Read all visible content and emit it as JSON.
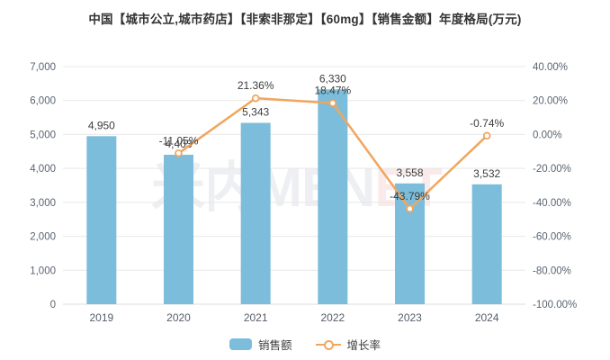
{
  "title": "中国【城市公立,城市药店】【非索非那定】【60mg】【销售金额】年度格局(万元)",
  "watermark": {
    "left": "米内MEN",
    "right": "ET"
  },
  "colors": {
    "bar": "#7CBDDB",
    "line": "#F0A65E",
    "grid": "#E8E8E8",
    "axis_line": "#DCDCDC",
    "tick_text": "#5B6470",
    "label_text": "#3D3D3D",
    "marker_fill": "#FFFFFF"
  },
  "legend": {
    "items": [
      {
        "label": "销售额",
        "type": "bar"
      },
      {
        "label": "增长率",
        "type": "line"
      }
    ]
  },
  "chart_data": {
    "type": "bar",
    "subtype": "bar+line dual-axis",
    "title": "中国【城市公立,城市药店】【非索非那定】【60mg】【销售金额】年度格局(万元)",
    "categories": [
      "2019",
      "2020",
      "2021",
      "2022",
      "2023",
      "2024"
    ],
    "series": [
      {
        "name": "销售额",
        "type": "bar",
        "axis": "left",
        "values": [
          4950,
          4403,
          5343,
          6330,
          3558,
          3532
        ],
        "labels": [
          "4,950",
          "4,403",
          "5,343",
          "6,330",
          "3,558",
          "3,532"
        ]
      },
      {
        "name": "增长率",
        "type": "line",
        "axis": "right",
        "values": [
          null,
          -11.05,
          21.36,
          18.47,
          -43.79,
          -0.74
        ],
        "labels": [
          null,
          "-11.05%",
          "21.36%",
          "18.47%",
          "-43.79%",
          "-0.74%"
        ]
      }
    ],
    "left_axis": {
      "min": 0,
      "max": 7000,
      "step": 1000,
      "ticks": [
        "0",
        "1,000",
        "2,000",
        "3,000",
        "4,000",
        "5,000",
        "6,000",
        "7,000"
      ]
    },
    "right_axis": {
      "min": -100,
      "max": 40,
      "step": 20,
      "ticks": [
        "-100.00%",
        "-80.00%",
        "-60.00%",
        "-40.00%",
        "-20.00%",
        "0.00%",
        "20.00%",
        "40.00%"
      ]
    },
    "grid": true,
    "legend_position": "bottom"
  }
}
